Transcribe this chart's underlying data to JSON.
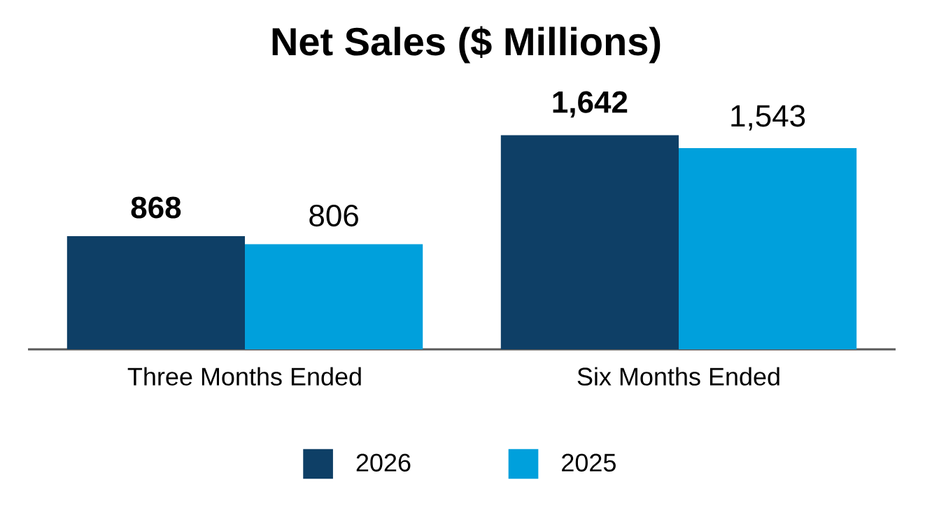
{
  "chart_data": {
    "type": "bar",
    "title": "Net Sales ($ Millions)",
    "categories": [
      "Three Months Ended",
      "Six Months Ended"
    ],
    "series": [
      {
        "name": "2026",
        "color": "#0e3f66",
        "values": [
          868,
          1642
        ],
        "value_labels": [
          "868",
          "1,642"
        ]
      },
      {
        "name": "2025",
        "color": "#00a0dc",
        "values": [
          806,
          1543
        ],
        "value_labels": [
          "806",
          "1,543"
        ]
      }
    ],
    "legend": "bottom",
    "grid": false
  }
}
